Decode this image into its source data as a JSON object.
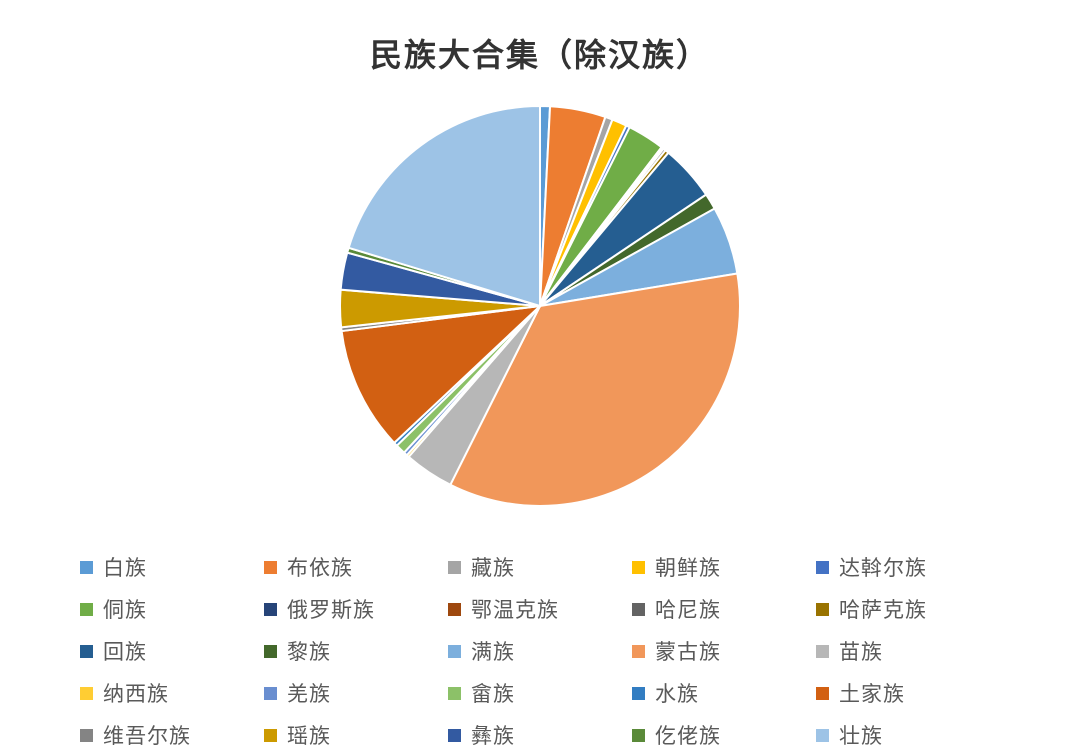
{
  "chart": {
    "type": "pie",
    "title": "民族大合集（除汉族）",
    "title_fontsize": 32,
    "title_color": "#333333",
    "background_color": "#ffffff",
    "pie_radius": 200,
    "slice_stroke": "#ffffff",
    "slice_stroke_width": 2,
    "slices": [
      {
        "label": "白族",
        "value": 0.8,
        "color": "#5b9bd5"
      },
      {
        "label": "布依族",
        "value": 4.5,
        "color": "#ed7d31"
      },
      {
        "label": "藏族",
        "value": 0.6,
        "color": "#a5a5a5"
      },
      {
        "label": "朝鲜族",
        "value": 1.2,
        "color": "#ffc000"
      },
      {
        "label": "达斡尔族",
        "value": 0.3,
        "color": "#4472c4"
      },
      {
        "label": "侗族",
        "value": 3.0,
        "color": "#70ad47"
      },
      {
        "label": "俄罗斯族",
        "value": 0.1,
        "color": "#264478"
      },
      {
        "label": "鄂温克族",
        "value": 0.1,
        "color": "#9e480e"
      },
      {
        "label": "哈尼族",
        "value": 0.2,
        "color": "#636363"
      },
      {
        "label": "哈萨克族",
        "value": 0.3,
        "color": "#997300"
      },
      {
        "label": "回族",
        "value": 4.5,
        "color": "#255e91"
      },
      {
        "label": "黎族",
        "value": 1.3,
        "color": "#43682b"
      },
      {
        "label": "满族",
        "value": 5.5,
        "color": "#7cafdd"
      },
      {
        "label": "蒙古族",
        "value": 35.0,
        "color": "#f1975a"
      },
      {
        "label": "苗族",
        "value": 4.0,
        "color": "#b7b7b7"
      },
      {
        "label": "纳西族",
        "value": 0.2,
        "color": "#ffcd33"
      },
      {
        "label": "羌族",
        "value": 0.3,
        "color": "#698ed0"
      },
      {
        "label": "畲族",
        "value": 0.8,
        "color": "#8cc168"
      },
      {
        "label": "水族",
        "value": 0.3,
        "color": "#327dc2"
      },
      {
        "label": "土家族",
        "value": 10.0,
        "color": "#d26012"
      },
      {
        "label": "维吾尔族",
        "value": 0.3,
        "color": "#848484"
      },
      {
        "label": "瑶族",
        "value": 3.0,
        "color": "#cc9a00"
      },
      {
        "label": "彝族",
        "value": 3.0,
        "color": "#335aa1"
      },
      {
        "label": "仡佬族",
        "value": 0.4,
        "color": "#5a8a39"
      },
      {
        "label": "壮族",
        "value": 20.3,
        "color": "#9dc3e6"
      }
    ],
    "legend": {
      "columns": 5,
      "item_width": 184,
      "swatch_size": 13,
      "fontsize": 21,
      "text_color": "#595959"
    }
  }
}
